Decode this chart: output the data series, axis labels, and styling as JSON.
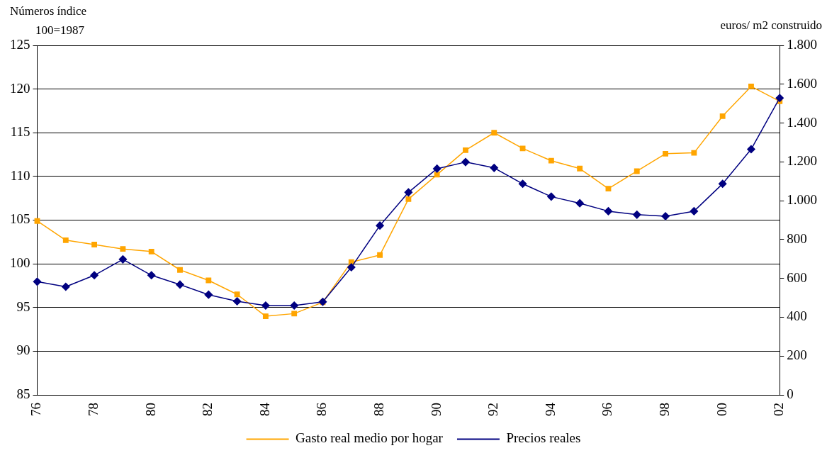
{
  "chart_data": {
    "type": "line",
    "ylabel": "Números índice\n100=1987",
    "y2label": "euros/ m2 construido",
    "categories": [
      "76",
      null,
      "78",
      null,
      "80",
      null,
      "82",
      null,
      "84",
      null,
      "86",
      null,
      "88",
      null,
      "90",
      null,
      "92",
      null,
      "94",
      null,
      "96",
      null,
      "98",
      null,
      "00",
      null,
      "02"
    ],
    "series": [
      {
        "name": "Gasto real medio por hogar",
        "color": "#ffa500",
        "marker": "square",
        "values": [
          104.9,
          102.7,
          102.2,
          101.7,
          101.4,
          99.3,
          98.1,
          96.5,
          94.0,
          94.3,
          95.6,
          100.2,
          101.0,
          107.4,
          110.2,
          113.0,
          115.0,
          113.2,
          111.8,
          110.9,
          108.6,
          110.6,
          112.6,
          112.7,
          116.9,
          120.3,
          118.6
        ]
      },
      {
        "name": "Precios reales",
        "color": "#000080",
        "marker": "diamond",
        "axis": "y2",
        "values": [
          583,
          557,
          616,
          698,
          616,
          568,
          516,
          482,
          460,
          460,
          479,
          657,
          872,
          1043,
          1165,
          1199,
          1169,
          1087,
          1021,
          987,
          946,
          928,
          920,
          946,
          1087,
          1265,
          1529
        ]
      }
    ],
    "ylim": [
      85,
      125
    ],
    "yticks": [
      85,
      90,
      95,
      100,
      105,
      110,
      115,
      120,
      125
    ],
    "y2lim": [
      0,
      1800
    ],
    "y2ticks": [
      0,
      200,
      400,
      600,
      800,
      {
        "value": 1000,
        "label": "1.000"
      },
      {
        "value": 1200,
        "label": "1.200"
      },
      {
        "value": 1400,
        "label": "1.400"
      },
      {
        "value": 1600,
        "label": "1.600"
      },
      {
        "value": 1800,
        "label": "1.800"
      }
    ],
    "grid": "y",
    "legend": "bottom"
  }
}
